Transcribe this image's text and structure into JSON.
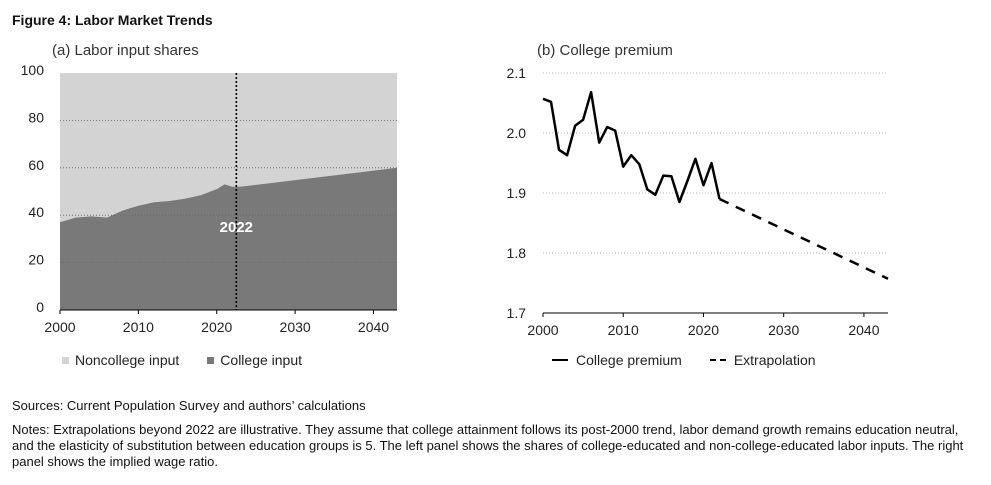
{
  "figure": {
    "title": "Figure 4: Labor Market Trends",
    "sources": "Sources: Current Population Survey and authors’ calculations",
    "notes": "Notes: Extrapolations beyond 2022 are illustrative. They assume that college attainment follows its post-2000 trend, labor demand growth remains education neutral, and the elasticity of substitution between education groups is 5. The left panel shows the shares of college-educated and non-college-educated labor inputs. The right panel shows the implied wage ratio."
  },
  "colors": {
    "noncollege": "#d3d3d3",
    "college": "#797979",
    "line": "#000000",
    "grid": "#9a9a9a"
  },
  "chart_data": [
    {
      "type": "area",
      "title": "(a) Labor input shares",
      "xlabel": "",
      "ylabel": "",
      "xlim": [
        2000,
        2043
      ],
      "ylim": [
        0,
        100
      ],
      "x_ticks": [
        2000,
        2010,
        2020,
        2030,
        2040
      ],
      "y_ticks": [
        0,
        20,
        40,
        60,
        80,
        100
      ],
      "grid": "horizontal dotted",
      "annotation": {
        "x": 2022.5,
        "label": "2022"
      },
      "legend": [
        "Noncollege input",
        "College input"
      ],
      "series": [
        {
          "name": "College input",
          "x": [
            2000,
            2002,
            2004,
            2006,
            2008,
            2010,
            2012,
            2014,
            2016,
            2018,
            2020,
            2021,
            2022,
            2023,
            2043
          ],
          "values": [
            37,
            39,
            39.5,
            39,
            42,
            44,
            45.5,
            46,
            47,
            48.5,
            51,
            53,
            52,
            52,
            60
          ]
        },
        {
          "name": "Noncollege input",
          "x": [
            2000,
            2002,
            2004,
            2006,
            2008,
            2010,
            2012,
            2014,
            2016,
            2018,
            2020,
            2021,
            2022,
            2023,
            2043
          ],
          "values": [
            63,
            61,
            60.5,
            61,
            58,
            56,
            54.5,
            54,
            53,
            51.5,
            49,
            47,
            48,
            48,
            40
          ]
        }
      ]
    },
    {
      "type": "line",
      "title": "(b) College premium",
      "xlabel": "",
      "ylabel": "",
      "xlim": [
        2000,
        2043
      ],
      "ylim": [
        1.7,
        2.1
      ],
      "x_ticks": [
        2000,
        2010,
        2020,
        2030,
        2040
      ],
      "y_ticks": [
        1.7,
        1.8,
        1.9,
        2.0,
        2.1
      ],
      "grid": "horizontal dotted",
      "legend": [
        "College premium",
        "Extrapolation"
      ],
      "series": [
        {
          "name": "College premium",
          "x": [
            2000,
            2001,
            2002,
            2003,
            2004,
            2005,
            2006,
            2007,
            2008,
            2009,
            2010,
            2011,
            2012,
            2013,
            2014,
            2015,
            2016,
            2017,
            2018,
            2019,
            2020,
            2021,
            2022
          ],
          "values": [
            2.057,
            2.052,
            1.972,
            1.963,
            2.012,
            2.022,
            2.068,
            1.984,
            2.01,
            2.004,
            1.944,
            1.963,
            1.948,
            1.906,
            1.897,
            1.929,
            1.928,
            1.885,
            1.92,
            1.957,
            1.913,
            1.95,
            1.89
          ]
        },
        {
          "name": "Extrapolation",
          "x": [
            2022,
            2043
          ],
          "values": [
            1.89,
            1.757
          ]
        }
      ]
    }
  ]
}
